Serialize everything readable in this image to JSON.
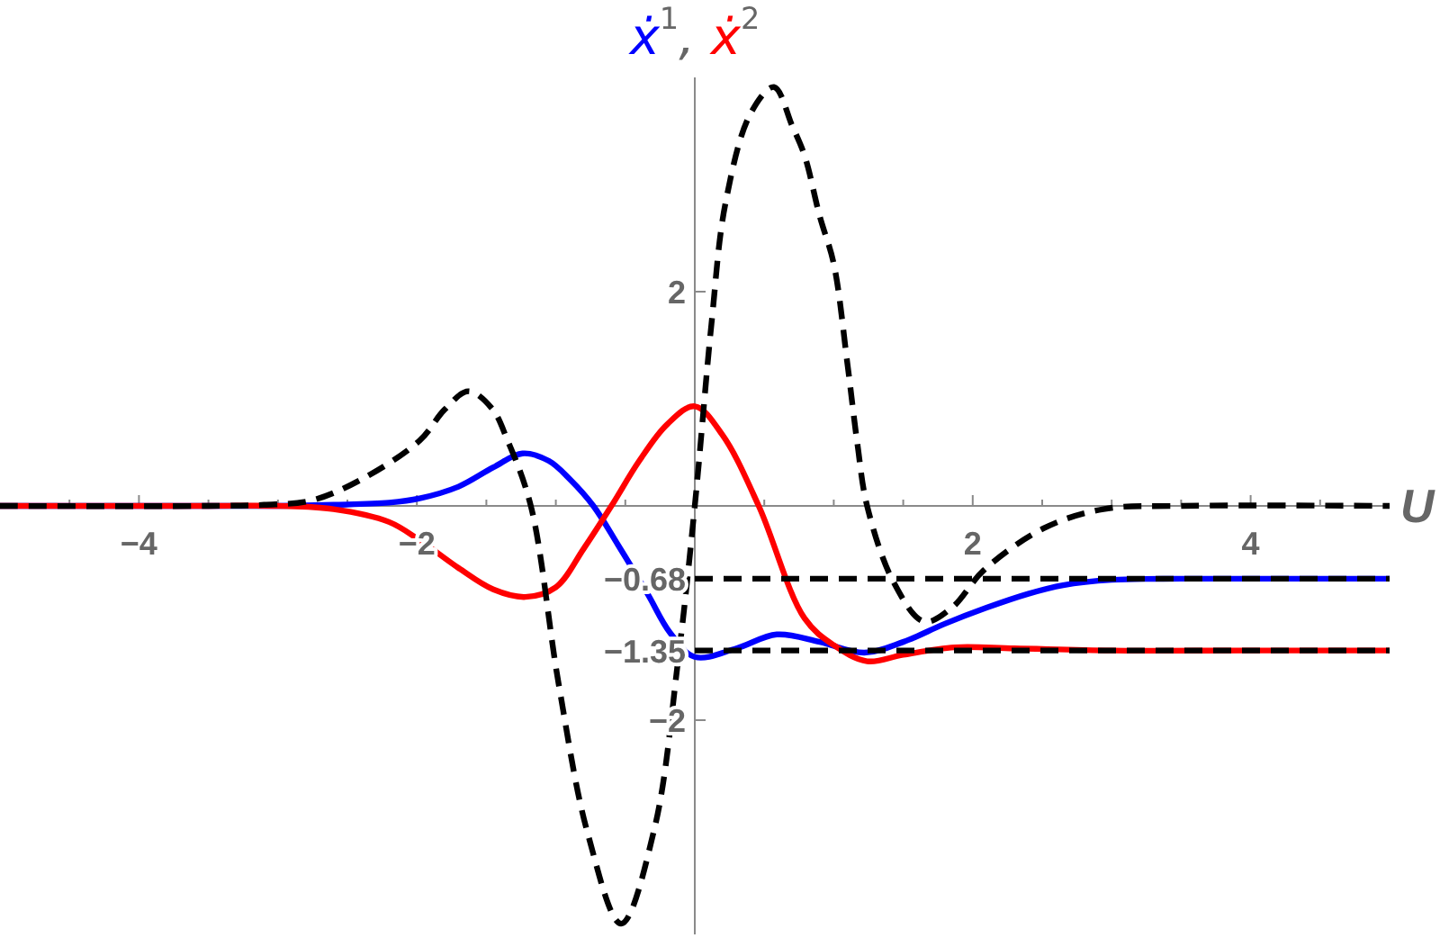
{
  "chart_data": {
    "type": "line",
    "xlabel": "U",
    "ylabel": "ẋ$^{1}$, ẋ$^{2}$",
    "xlim": [
      -5,
      5
    ],
    "ylim": [
      -4,
      4
    ],
    "xticks": [
      {
        "value": -4.5,
        "label": null
      },
      -4,
      {
        "value": -3.5,
        "label": null
      },
      {
        "value": -3,
        "label": null
      },
      {
        "value": -2.5,
        "label": null
      },
      -2,
      {
        "value": -1.5,
        "label": null
      },
      {
        "value": -1,
        "label": null
      },
      {
        "value": -0.5,
        "label": null
      },
      {
        "value": 0.5,
        "label": null
      },
      {
        "value": 1,
        "label": null
      },
      {
        "value": 1.5,
        "label": null
      },
      2,
      {
        "value": 2.5,
        "label": null
      },
      {
        "value": 3,
        "label": null
      },
      {
        "value": 3.5,
        "label": null
      },
      4,
      {
        "value": 4.5,
        "label": null
      }
    ],
    "yticks": [
      -2,
      -1.35,
      -0.68,
      2
    ],
    "series": [
      {
        "color": "#0000ff",
        "line_style": "solid",
        "x": [
          -5,
          -3.5,
          -3,
          -2.6,
          -2.2,
          -1.98,
          -1.7,
          -1.45,
          -1.24,
          -1.05,
          -0.9,
          -0.73,
          -0.55,
          -0.34,
          -0.18,
          0,
          0.3,
          0.59,
          0.9,
          1.22,
          1.5,
          1.8,
          2.1,
          2.4,
          2.65,
          3,
          3.5,
          4,
          5
        ],
        "values": [
          0,
          0,
          0,
          0.01,
          0.03,
          0.07,
          0.18,
          0.36,
          0.49,
          0.42,
          0.25,
          0,
          -0.37,
          -0.82,
          -1.18,
          -1.41,
          -1.33,
          -1.2,
          -1.27,
          -1.37,
          -1.27,
          -1.1,
          -0.95,
          -0.82,
          -0.74,
          -0.69,
          -0.68,
          -0.68,
          -0.68
        ]
      },
      {
        "color": "#ff0000",
        "line_style": "solid",
        "x": [
          -5,
          -3.5,
          -3,
          -2.6,
          -2.2,
          -1.98,
          -1.7,
          -1.45,
          -1.22,
          -1.0,
          -0.8,
          -0.6,
          -0.4,
          -0.2,
          0,
          0.2,
          0.46,
          0.79,
          1.0,
          1.24,
          1.5,
          1.87,
          2.3,
          3,
          4,
          5
        ],
        "values": [
          0,
          0,
          0,
          -0.03,
          -0.15,
          -0.32,
          -0.58,
          -0.78,
          -0.85,
          -0.76,
          -0.4,
          0,
          0.42,
          0.76,
          0.93,
          0.66,
          0,
          -1.05,
          -1.3,
          -1.45,
          -1.39,
          -1.32,
          -1.33,
          -1.35,
          -1.35,
          -1.35
        ]
      },
      {
        "color": "#000000",
        "line_style": "dashed",
        "x": [
          -5,
          -3.5,
          -3.1,
          -2.76,
          -2.41,
          -1.98,
          -1.8,
          -1.63,
          -1.46,
          -1.35,
          -1.18,
          -0.98,
          -0.77,
          -0.53,
          -0.29,
          -0.12,
          0,
          0.12,
          0.22,
          0.4,
          0.57,
          0.7,
          0.79,
          0.9,
          1.0,
          1.1,
          1.17,
          1.24,
          1.43,
          1.65,
          1.85,
          2.08,
          2.51,
          2.94,
          3.5,
          5
        ],
        "values": [
          0,
          0,
          0.01,
          0.05,
          0.24,
          0.61,
          0.9,
          1.07,
          0.91,
          0.62,
          0,
          -1.66,
          -3.06,
          -3.9,
          -3.01,
          -1.44,
          0,
          1.7,
          2.82,
          3.66,
          3.91,
          3.55,
          3.27,
          2.7,
          2.26,
          1.31,
          0.58,
          0,
          -0.71,
          -1.08,
          -0.95,
          -0.6,
          -0.21,
          -0.03,
          0,
          0
        ]
      },
      {
        "color": "#000000",
        "line_style": "dashed",
        "x": [
          0,
          5
        ],
        "values": [
          -0.68,
          -0.68
        ]
      },
      {
        "color": "#000000",
        "line_style": "dashed",
        "x": [
          0,
          5
        ],
        "values": [
          -1.35,
          -1.35
        ]
      }
    ]
  }
}
